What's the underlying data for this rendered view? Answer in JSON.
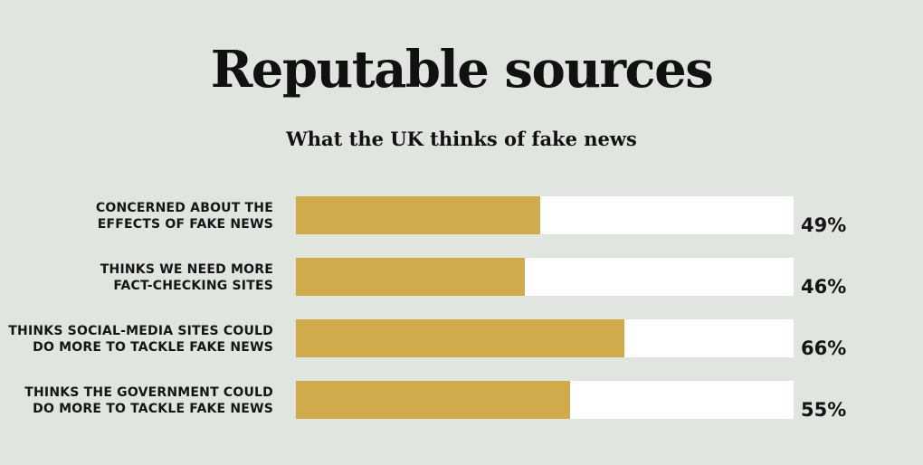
{
  "title": "Reputable sources",
  "subtitle": "What the UK thinks of fake news",
  "colors": {
    "background": "#e1e5df",
    "bar_fill": "#cfab4b",
    "bar_track": "#ffffff"
  },
  "chart_data": {
    "type": "bar",
    "orientation": "horizontal",
    "title": "Reputable sources",
    "subtitle": "What the UK thinks of fake news",
    "unit": "%",
    "xlim": [
      0,
      100
    ],
    "grid": false,
    "categories": [
      "CONCERNED ABOUT THE\nEFFECTS OF FAKE NEWS",
      "THINKS WE NEED MORE\nFACT-CHECKING SITES",
      "THINKS SOCIAL-MEDIA SITES COULD\nDO MORE TO TACKLE FAKE NEWS",
      "THINKS THE GOVERNMENT COULD\nDO MORE TO TACKLE FAKE NEWS"
    ],
    "values": [
      49,
      46,
      66,
      55
    ],
    "value_labels": [
      "49%",
      "46%",
      "66%",
      "55%"
    ]
  }
}
